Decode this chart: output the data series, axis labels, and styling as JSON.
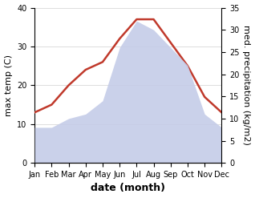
{
  "months": [
    "Jan",
    "Feb",
    "Mar",
    "Apr",
    "May",
    "Jun",
    "Jul",
    "Aug",
    "Sep",
    "Oct",
    "Nov",
    "Dec"
  ],
  "month_indices": [
    1,
    2,
    3,
    4,
    5,
    6,
    7,
    8,
    9,
    10,
    11,
    12
  ],
  "temperature": [
    13,
    15,
    20,
    24,
    26,
    32,
    37,
    37,
    31,
    25,
    17,
    13
  ],
  "precipitation": [
    8,
    8,
    10,
    11,
    14,
    26,
    32,
    30,
    26,
    22,
    11,
    8
  ],
  "temp_color": "#c0392b",
  "precip_fill_color": "#c5cce8",
  "left_ylabel": "max temp (C)",
  "right_ylabel": "med. precipitation (kg/m2)",
  "xlabel": "date (month)",
  "left_ylim": [
    0,
    40
  ],
  "right_ylim": [
    0,
    35
  ],
  "left_yticks": [
    0,
    10,
    20,
    30,
    40
  ],
  "right_yticks": [
    0,
    5,
    10,
    15,
    20,
    25,
    30,
    35
  ],
  "bg_color": "#ffffff",
  "grid_color": "#d0d0d0",
  "label_fontsize": 8,
  "tick_fontsize": 7,
  "xlabel_fontsize": 9
}
